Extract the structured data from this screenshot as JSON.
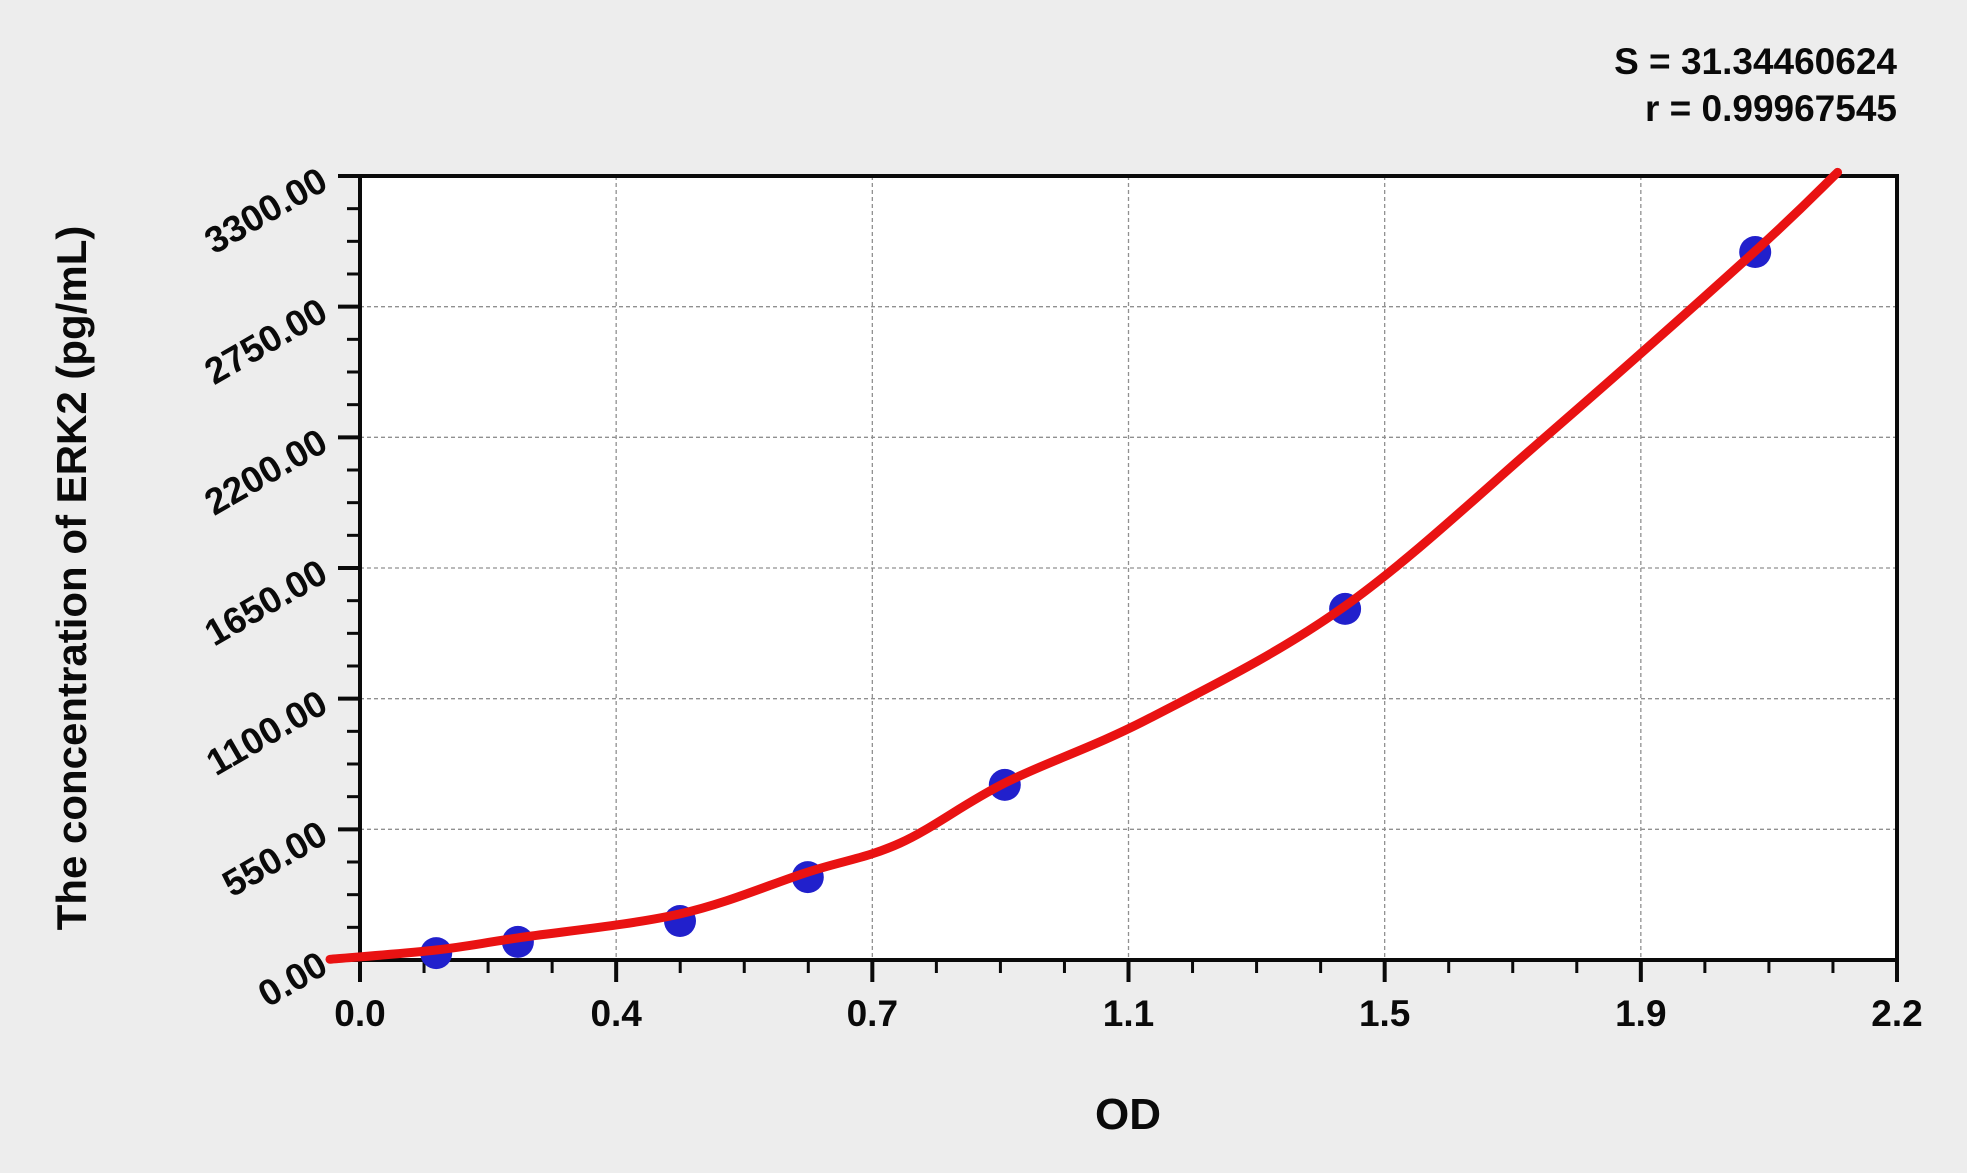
{
  "stats": {
    "s_line": "S = 31.34460624",
    "r_line": "r = 0.99967545"
  },
  "chart_data": {
    "type": "scatter",
    "title": "",
    "xlabel": "OD",
    "ylabel": "The concentration of ERK2 (pg/mL)",
    "x_axis": {
      "label": "OD",
      "range": [
        0,
        2.2
      ],
      "major_tick_values": [
        0,
        0.36667,
        0.73333,
        1.1,
        1.46667,
        1.83333,
        2.2
      ],
      "major_tick_labels": [
        "0.0",
        "0.4",
        "0.7",
        "1.1",
        "1.5",
        "1.9",
        "2.2"
      ],
      "minor_divisions": 4
    },
    "y_axis": {
      "label": "The concentration of ERK2 (pg/mL)",
      "range": [
        0,
        3300
      ],
      "major_tick_values": [
        0,
        550,
        1100,
        1650,
        2200,
        2750,
        3300
      ],
      "major_tick_labels": [
        "0.00",
        "550.00",
        "1100.00",
        "1650.00",
        "2200.00",
        "2750.00",
        "3300.00"
      ],
      "minor_divisions": 4
    },
    "grid": {
      "show": true,
      "style": "dashed",
      "on_major_ticks": true
    },
    "fit": {
      "S": "31.34460624",
      "r": "0.99967545"
    },
    "series": [
      {
        "name": "standard-points",
        "type": "scatter",
        "color": "#2120cc",
        "marker_radius": 16,
        "points": [
          {
            "od": 0.109,
            "conc": 29
          },
          {
            "od": 0.226,
            "conc": 76
          },
          {
            "od": 0.458,
            "conc": 164
          },
          {
            "od": 0.641,
            "conc": 349
          },
          {
            "od": 0.923,
            "conc": 737
          },
          {
            "od": 1.41,
            "conc": 1478
          },
          {
            "od": 1.997,
            "conc": 2980
          }
        ]
      },
      {
        "name": "fit-curve",
        "type": "line",
        "color": "#e91212",
        "stroke_width": 9,
        "points": [
          {
            "od": -0.043,
            "conc": 3
          },
          {
            "od": 0.109,
            "conc": 42
          },
          {
            "od": 0.226,
            "conc": 93
          },
          {
            "od": 0.458,
            "conc": 194
          },
          {
            "od": 0.641,
            "conc": 370
          },
          {
            "od": 0.773,
            "conc": 492
          },
          {
            "od": 0.923,
            "conc": 745
          },
          {
            "od": 1.131,
            "conc": 1019
          },
          {
            "od": 1.41,
            "conc": 1490
          },
          {
            "od": 1.703,
            "conc": 2218
          },
          {
            "od": 1.997,
            "conc": 2984
          },
          {
            "od": 2.115,
            "conc": 3315
          }
        ]
      }
    ]
  },
  "colors": {
    "background": "#ededed",
    "plot_background": "#ffffff",
    "axis": "#0a0a0a",
    "grid": "#909090",
    "curve": "#e91212",
    "points": "#2120cc"
  }
}
